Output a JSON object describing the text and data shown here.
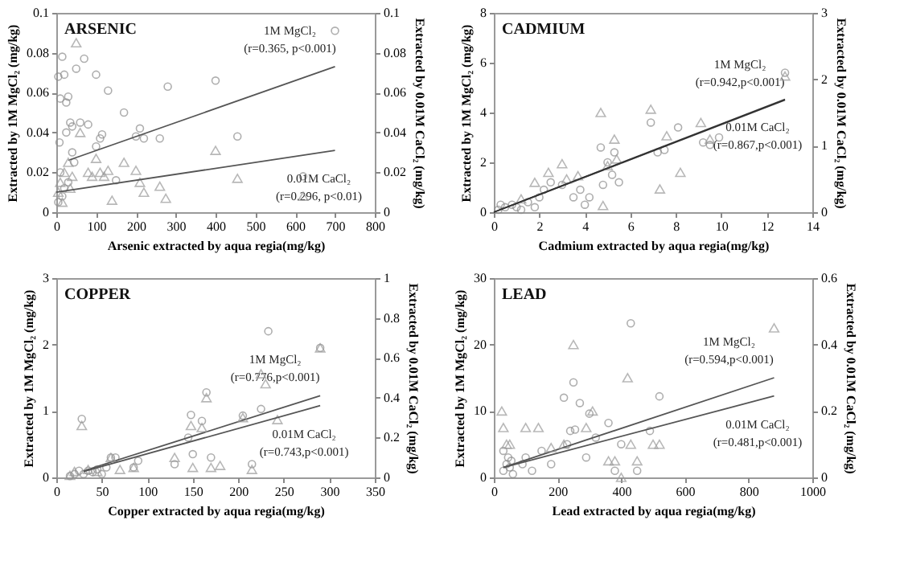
{
  "chart_data": [
    {
      "type": "scatter",
      "title": "ARSENIC",
      "xlabel": "Arsenic extracted by aqua regia(mg/kg)",
      "ylabel": "Extracted by 1M MgCl₂ (mg/kg)",
      "y2label": "Extracted by 0.01M CaCl₂ (mg/kg)",
      "xlim": [
        0,
        800
      ],
      "xticks": [
        0,
        100,
        200,
        300,
        400,
        500,
        600,
        700,
        800
      ],
      "ylim": [
        0,
        0.1
      ],
      "yticks": [
        0,
        0.02,
        0.04,
        0.06,
        0.08,
        0.1
      ],
      "y2lim": [
        0,
        0.1
      ],
      "y2ticks": [
        0,
        0.02,
        0.04,
        0.06,
        0.08,
        0.1
      ],
      "grid": false,
      "series": [
        {
          "type": "scatter",
          "marker": "circle",
          "color": "#8c8c8c",
          "x": [
            5,
            10,
            15,
            20,
            25,
            30,
            35,
            40,
            45,
            10,
            20,
            30,
            50,
            60,
            70,
            80,
            100,
            100,
            110,
            115,
            130,
            150,
            170,
            200,
            210,
            220,
            260,
            280,
            400,
            455,
            620,
            700,
            5,
            15,
            40,
            8,
            25
          ],
          "values": [
            0.068,
            0.057,
            0.078,
            0.069,
            0.055,
            0.058,
            0.045,
            0.043,
            0.025,
            0.02,
            0.012,
            0.015,
            0.072,
            0.045,
            0.077,
            0.044,
            0.069,
            0.033,
            0.037,
            0.039,
            0.061,
            0.016,
            0.05,
            0.038,
            0.042,
            0.037,
            0.037,
            0.063,
            0.066,
            0.038,
            0.018,
            0.091,
            0.005,
            0.008,
            0.03,
            0.035,
            0.04
          ]
        },
        {
          "type": "scatter",
          "marker": "triangle",
          "axis": "y2",
          "color": "#9a9a9a",
          "x": [
            5,
            10,
            20,
            30,
            40,
            50,
            60,
            80,
            90,
            100,
            110,
            120,
            130,
            140,
            170,
            200,
            210,
            220,
            260,
            275,
            400,
            455,
            620,
            15,
            35
          ],
          "values": [
            0.01,
            0.015,
            0.02,
            0.025,
            0.018,
            0.085,
            0.04,
            0.02,
            0.018,
            0.027,
            0.02,
            0.018,
            0.021,
            0.006,
            0.025,
            0.021,
            0.015,
            0.01,
            0.013,
            0.007,
            0.031,
            0.017,
            0.008,
            0.005,
            0.012
          ]
        },
        {
          "type": "line",
          "color": "#555555",
          "x": [
            30,
            700
          ],
          "values": [
            0.026,
            0.073
          ]
        },
        {
          "type": "line",
          "axis": "y2",
          "color": "#555555",
          "x": [
            0,
            700
          ],
          "values": [
            0.01,
            0.031
          ]
        }
      ],
      "annotations": [
        "1M MgCl₂",
        "(r=0.365, p<0.001)",
        "0.01M CaCl₂",
        "(r=0.296, p<0.01)"
      ]
    },
    {
      "type": "scatter",
      "title": "CADMIUM",
      "xlabel": "Cadmium extracted by aqua regia(mg/kg)",
      "ylabel": "Extracted by 1M MgCl₂ (mg/kg)",
      "y2label": "Extracted by 0.01M CaCl₂ (mg/kg)",
      "xlim": [
        0,
        14
      ],
      "xticks": [
        0,
        2,
        4,
        6,
        8,
        10,
        12,
        14
      ],
      "ylim": [
        0,
        8
      ],
      "yticks": [
        0,
        2,
        4,
        6,
        8
      ],
      "y2lim": [
        0,
        3
      ],
      "y2ticks": [
        0,
        1,
        2,
        3
      ],
      "grid": false,
      "series": [
        {
          "type": "scatter",
          "marker": "circle",
          "color": "#8c8c8c",
          "x": [
            0.2,
            0.5,
            0.8,
            1,
            1.5,
            2,
            2.2,
            2.5,
            3,
            3.5,
            3.8,
            4,
            4.2,
            4.7,
            4.8,
            5,
            5.2,
            5.3,
            5.5,
            6.9,
            7.2,
            7.5,
            8.1,
            9.2,
            9.5,
            9.9,
            12.8,
            0.3,
            1.2,
            1.8
          ],
          "values": [
            0.1,
            0.2,
            0.3,
            0.2,
            0.4,
            0.6,
            0.9,
            1.2,
            1.1,
            0.6,
            0.9,
            0.3,
            0.6,
            2.6,
            1.1,
            2,
            1.5,
            2.4,
            1.2,
            3.6,
            2.4,
            2.5,
            3.4,
            2.8,
            2.7,
            3,
            5.6,
            0.3,
            0.1,
            0.2
          ]
        },
        {
          "type": "scatter",
          "marker": "triangle",
          "axis": "y2",
          "color": "#9a9a9a",
          "x": [
            1.2,
            1.8,
            2.4,
            3,
            3.2,
            3.7,
            4.7,
            4.8,
            5,
            5.3,
            5.4,
            6.9,
            7.3,
            7.6,
            8.2,
            9.1,
            9.5,
            12.8
          ],
          "values": [
            0.2,
            0.45,
            0.6,
            0.73,
            0.5,
            0.55,
            1.5,
            0.1,
            0.7,
            1.1,
            0.8,
            1.55,
            0.35,
            1.15,
            0.6,
            1.35,
            1.1,
            2.05
          ]
        },
        {
          "type": "line",
          "color": "#333333",
          "x": [
            0,
            12.8
          ],
          "values": [
            0,
            4.5
          ]
        },
        {
          "type": "line",
          "axis": "y2",
          "color": "#333333",
          "x": [
            0,
            12.8
          ],
          "values": [
            0,
            1.7
          ]
        }
      ],
      "annotations": [
        "1M MgCl₂",
        "(r=0.942,p<0.001)",
        "0.01M CaCl₂",
        "(r=0.867,p<0.001)"
      ]
    },
    {
      "type": "scatter",
      "title": "COPPER",
      "xlabel": "Copper extracted by aqua regia(mg/kg)",
      "ylabel": "Extracted by 1M MgCl₂ (mg/kg)",
      "y2label": "Extracted by 0.01M CaCl₂ (mg/kg)",
      "xlim": [
        0,
        350
      ],
      "xticks": [
        0,
        50,
        100,
        150,
        200,
        250,
        300,
        350
      ],
      "ylim": [
        0,
        3
      ],
      "yticks": [
        0,
        1,
        2,
        3
      ],
      "y2lim": [
        0,
        1
      ],
      "y2ticks": [
        0,
        0.2,
        0.4,
        0.6,
        0.8,
        1
      ],
      "grid": false,
      "series": [
        {
          "type": "scatter",
          "marker": "circle",
          "color": "#8c8c8c",
          "x": [
            20,
            25,
            28,
            30,
            35,
            40,
            45,
            55,
            60,
            65,
            85,
            90,
            130,
            145,
            148,
            150,
            160,
            165,
            170,
            205,
            215,
            225,
            233,
            290,
            15,
            50
          ],
          "values": [
            0.05,
            0.1,
            0.88,
            0.05,
            0.1,
            0.08,
            0.12,
            0.15,
            0.3,
            0.3,
            0.15,
            0.25,
            0.2,
            0.6,
            0.94,
            0.35,
            0.85,
            1.28,
            0.3,
            0.93,
            0.2,
            1.03,
            2.2,
            1.95,
            0.02,
            0.05
          ]
        },
        {
          "type": "scatter",
          "marker": "triangle",
          "axis": "y2",
          "color": "#9a9a9a",
          "x": [
            20,
            28,
            35,
            45,
            60,
            70,
            85,
            130,
            148,
            150,
            160,
            165,
            170,
            180,
            205,
            215,
            225,
            230,
            243,
            290,
            15
          ],
          "values": [
            0.03,
            0.26,
            0.04,
            0.03,
            0.1,
            0.04,
            0.05,
            0.1,
            0.26,
            0.05,
            0.25,
            0.4,
            0.05,
            0.06,
            0.3,
            0.04,
            0.52,
            0.47,
            0.29,
            0.65,
            0.01
          ]
        },
        {
          "type": "line",
          "color": "#555555",
          "x": [
            30,
            290
          ],
          "values": [
            0.1,
            1.23
          ]
        },
        {
          "type": "line",
          "axis": "y2",
          "color": "#555555",
          "x": [
            30,
            290
          ],
          "values": [
            0.03,
            0.36
          ]
        }
      ],
      "annotations": [
        "1M MgCl₂",
        "(r=0.776,p<0.001)",
        "0.01M CaCl₂",
        "(r=0.743,p<0.001)"
      ]
    },
    {
      "type": "scatter",
      "title": "LEAD",
      "xlabel": "Lead extracted by aqua regia(mg/kg)",
      "ylabel": "Extracted by 1M MgCl₂ (mg/kg)",
      "y2label": "Extracted by 0.01M CaCl₂ (mg/kg)",
      "xlim": [
        0,
        1000
      ],
      "xticks": [
        0,
        200,
        400,
        600,
        800,
        1000
      ],
      "ylim": [
        0,
        30
      ],
      "yticks": [
        0,
        10,
        20,
        30
      ],
      "y2lim": [
        0,
        0.6
      ],
      "y2ticks": [
        0,
        0.2,
        0.4,
        0.6
      ],
      "grid": false,
      "series": [
        {
          "type": "scatter",
          "marker": "circle",
          "color": "#8c8c8c",
          "x": [
            30,
            40,
            45,
            50,
            55,
            60,
            90,
            100,
            120,
            150,
            180,
            220,
            230,
            240,
            250,
            255,
            270,
            290,
            300,
            320,
            360,
            380,
            400,
            430,
            450,
            490,
            520,
            30
          ],
          "values": [
            1,
            2,
            3,
            1.5,
            2.5,
            0.5,
            2,
            3,
            1,
            4,
            2,
            12,
            5,
            7,
            14.3,
            7.2,
            11.2,
            3,
            9.6,
            6,
            8.2,
            1,
            5,
            23.2,
            1,
            7,
            12.2,
            4
          ]
        },
        {
          "type": "scatter",
          "marker": "triangle",
          "axis": "y2",
          "color": "#9a9a9a",
          "x": [
            25,
            30,
            40,
            50,
            100,
            140,
            180,
            220,
            250,
            290,
            310,
            360,
            380,
            400,
            420,
            430,
            450,
            500,
            520,
            880
          ],
          "values": [
            0.2,
            0.15,
            0.1,
            0.1,
            0.15,
            0.15,
            0.09,
            0.1,
            0.4,
            0.15,
            0.2,
            0.05,
            0.05,
            0,
            0.3,
            0.1,
            0.05,
            0.1,
            0.1,
            0.45
          ]
        },
        {
          "type": "line",
          "color": "#555555",
          "x": [
            30,
            880
          ],
          "values": [
            1.5,
            15
          ]
        },
        {
          "type": "line",
          "axis": "y2",
          "color": "#555555",
          "x": [
            30,
            880
          ],
          "values": [
            0.03,
            0.245
          ]
        }
      ],
      "annotations": [
        "1M MgCl₂",
        "(r=0.594,p<0.001)",
        "0.01M CaCl₂",
        "(r=0.481,p<0.001)"
      ]
    }
  ]
}
